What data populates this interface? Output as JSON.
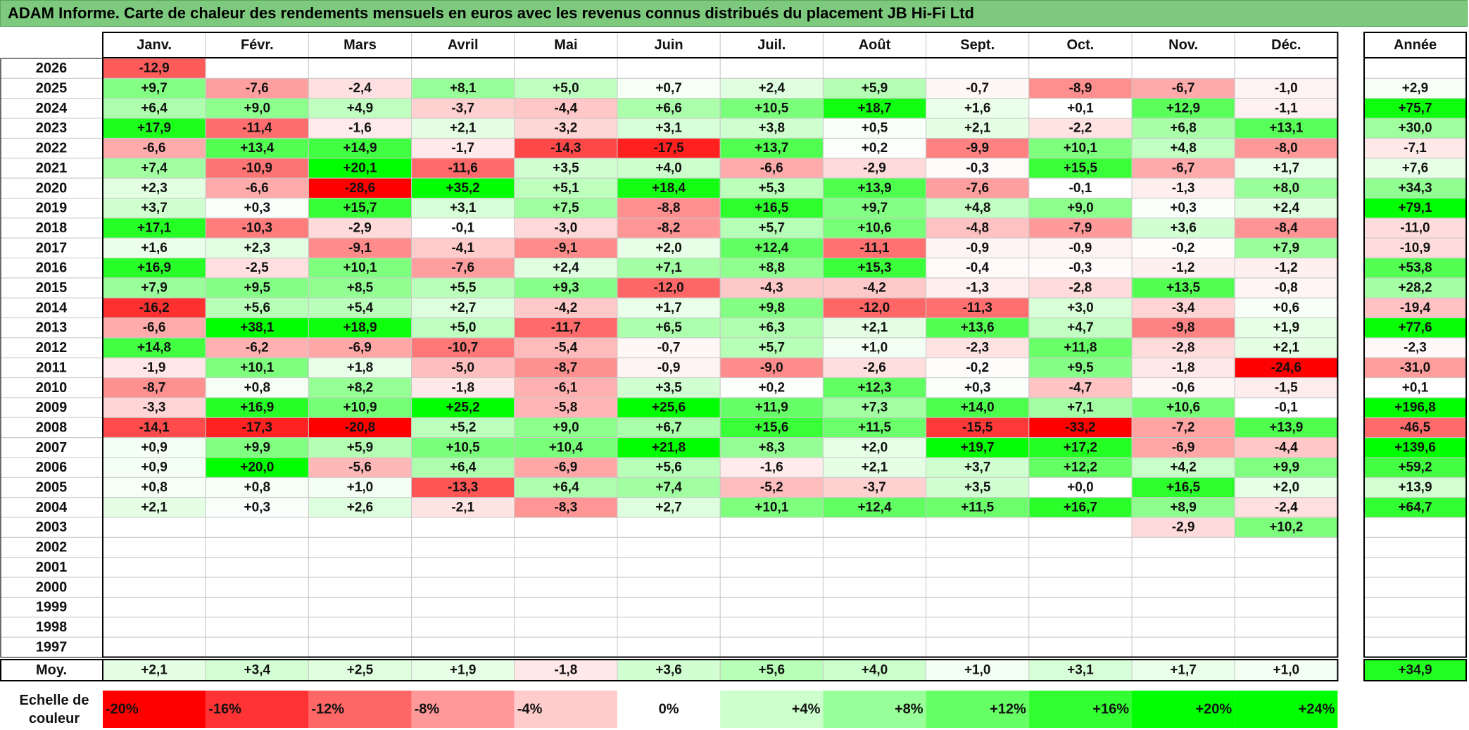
{
  "title": "ADAM Informe. Carte de chaleur des rendements mensuels en euros avec les revenus connus distribués du placement JB Hi-Fi Ltd",
  "colors": {
    "title_bg": "#7dc97d",
    "grid": "#c8c8c8",
    "strong_border": "#000000",
    "scale": {
      "-20": "#ff0000",
      "-16": "#ff3333",
      "-12": "#ff6666",
      "-8": "#ff9999",
      "-4": "#ffcccc",
      "0": "#ffffff",
      "4": "#ccffcc",
      "8": "#99ff99",
      "12": "#66ff66",
      "16": "#33ff33",
      "20": "#00ff00",
      "24": "#00ff00"
    }
  },
  "chart_data": {
    "type": "heatmap",
    "title": "ADAM Informe. Carte de chaleur des rendements mensuels en euros avec les revenus connus distribués du placement JB Hi-Fi Ltd",
    "columns": [
      "Janv.",
      "Févr.",
      "Mars",
      "Avril",
      "Mai",
      "Juin",
      "Juil.",
      "Août",
      "Sept.",
      "Oct.",
      "Nov.",
      "Déc."
    ],
    "year_column_label": "Année",
    "rows": [
      {
        "year": "2026",
        "values": [
          "-12,9",
          "",
          "",
          "",
          "",
          "",
          "",
          "",
          "",
          "",
          "",
          ""
        ],
        "annual": ""
      },
      {
        "year": "2025",
        "values": [
          "+9,7",
          "-7,6",
          "-2,4",
          "+8,1",
          "+5,0",
          "+0,7",
          "+2,4",
          "+5,9",
          "-0,7",
          "-8,9",
          "-6,7",
          "-1,0"
        ],
        "annual": "+2,9"
      },
      {
        "year": "2024",
        "values": [
          "+6,4",
          "+9,0",
          "+4,9",
          "-3,7",
          "-4,4",
          "+6,6",
          "+10,5",
          "+18,7",
          "+1,6",
          "+0,1",
          "+12,9",
          "-1,1"
        ],
        "annual": "+75,7"
      },
      {
        "year": "2023",
        "values": [
          "+17,9",
          "-11,4",
          "-1,6",
          "+2,1",
          "-3,2",
          "+3,1",
          "+3,8",
          "+0,5",
          "+2,1",
          "-2,2",
          "+6,8",
          "+13,1"
        ],
        "annual": "+30,0"
      },
      {
        "year": "2022",
        "values": [
          "-6,6",
          "+13,4",
          "+14,9",
          "-1,7",
          "-14,3",
          "-17,5",
          "+13,7",
          "+0,2",
          "-9,9",
          "+10,1",
          "+4,8",
          "-8,0"
        ],
        "annual": "-7,1"
      },
      {
        "year": "2021",
        "values": [
          "+7,4",
          "-10,9",
          "+20,1",
          "-11,6",
          "+3,5",
          "+4,0",
          "-6,6",
          "-2,9",
          "-0,3",
          "+15,5",
          "-6,7",
          "+1,7"
        ],
        "annual": "+7,6"
      },
      {
        "year": "2020",
        "values": [
          "+2,3",
          "-6,6",
          "-28,6",
          "+35,2",
          "+5,1",
          "+18,4",
          "+5,3",
          "+13,9",
          "-7,6",
          "-0,1",
          "-1,3",
          "+8,0"
        ],
        "annual": "+34,3"
      },
      {
        "year": "2019",
        "values": [
          "+3,7",
          "+0,3",
          "+15,7",
          "+3,1",
          "+7,5",
          "-8,8",
          "+16,5",
          "+9,7",
          "+4,8",
          "+9,0",
          "+0,3",
          "+2,4"
        ],
        "annual": "+79,1"
      },
      {
        "year": "2018",
        "values": [
          "+17,1",
          "-10,3",
          "-2,9",
          "-0,1",
          "-3,0",
          "-8,2",
          "+5,7",
          "+10,6",
          "-4,8",
          "-7,9",
          "+3,6",
          "-8,4"
        ],
        "annual": "-11,0"
      },
      {
        "year": "2017",
        "values": [
          "+1,6",
          "+2,3",
          "-9,1",
          "-4,1",
          "-9,1",
          "+2,0",
          "+12,4",
          "-11,1",
          "-0,9",
          "-0,9",
          "-0,2",
          "+7,9"
        ],
        "annual": "-10,9"
      },
      {
        "year": "2016",
        "values": [
          "+16,9",
          "-2,5",
          "+10,1",
          "-7,6",
          "+2,4",
          "+7,1",
          "+8,8",
          "+15,3",
          "-0,4",
          "-0,3",
          "-1,2",
          "-1,2"
        ],
        "annual": "+53,8"
      },
      {
        "year": "2015",
        "values": [
          "+7,9",
          "+9,5",
          "+8,5",
          "+5,5",
          "+9,3",
          "-12,0",
          "-4,3",
          "-4,2",
          "-1,3",
          "-2,8",
          "+13,5",
          "-0,8"
        ],
        "annual": "+28,2"
      },
      {
        "year": "2014",
        "values": [
          "-16,2",
          "+5,6",
          "+5,4",
          "+2,7",
          "-4,2",
          "+1,7",
          "+9,8",
          "-12,0",
          "-11,3",
          "+3,0",
          "-3,4",
          "+0,6"
        ],
        "annual": "-19,4"
      },
      {
        "year": "2013",
        "values": [
          "-6,6",
          "+38,1",
          "+18,9",
          "+5,0",
          "-11,7",
          "+6,5",
          "+6,3",
          "+2,1",
          "+13,6",
          "+4,7",
          "-9,8",
          "+1,9"
        ],
        "annual": "+77,6"
      },
      {
        "year": "2012",
        "values": [
          "+14,8",
          "-6,2",
          "-6,9",
          "-10,7",
          "-5,4",
          "-0,7",
          "+5,7",
          "+1,0",
          "-2,3",
          "+11,8",
          "-2,8",
          "+2,1"
        ],
        "annual": "-2,3"
      },
      {
        "year": "2011",
        "values": [
          "-1,9",
          "+10,1",
          "+1,8",
          "-5,0",
          "-8,7",
          "-0,9",
          "-9,0",
          "-2,6",
          "-0,2",
          "+9,5",
          "-1,8",
          "-24,6"
        ],
        "annual": "-31,0"
      },
      {
        "year": "2010",
        "values": [
          "-8,7",
          "+0,8",
          "+8,2",
          "-1,8",
          "-6,1",
          "+3,5",
          "+0,2",
          "+12,3",
          "+0,3",
          "-4,7",
          "-0,6",
          "-1,5"
        ],
        "annual": "+0,1"
      },
      {
        "year": "2009",
        "values": [
          "-3,3",
          "+16,9",
          "+10,9",
          "+25,2",
          "-5,8",
          "+25,6",
          "+11,9",
          "+7,3",
          "+14,0",
          "+7,1",
          "+10,6",
          "-0,1"
        ],
        "annual": "+196,8"
      },
      {
        "year": "2008",
        "values": [
          "-14,1",
          "-17,3",
          "-20,8",
          "+5,2",
          "+9,0",
          "+6,7",
          "+15,6",
          "+11,5",
          "-15,5",
          "-33,2",
          "-7,2",
          "+13,9"
        ],
        "annual": "-46,5"
      },
      {
        "year": "2007",
        "values": [
          "+0,9",
          "+9,9",
          "+5,9",
          "+10,5",
          "+10,4",
          "+21,8",
          "+8,3",
          "+2,0",
          "+19,7",
          "+17,2",
          "-6,9",
          "-4,4"
        ],
        "annual": "+139,6"
      },
      {
        "year": "2006",
        "values": [
          "+0,9",
          "+20,0",
          "-5,6",
          "+6,4",
          "-6,9",
          "+5,6",
          "-1,6",
          "+2,1",
          "+3,7",
          "+12,2",
          "+4,2",
          "+9,9"
        ],
        "annual": "+59,2"
      },
      {
        "year": "2005",
        "values": [
          "+0,8",
          "+0,8",
          "+1,0",
          "-13,3",
          "+6,4",
          "+7,4",
          "-5,2",
          "-3,7",
          "+3,5",
          "+0,0",
          "+16,5",
          "+2,0"
        ],
        "annual": "+13,9"
      },
      {
        "year": "2004",
        "values": [
          "+2,1",
          "+0,3",
          "+2,6",
          "-2,1",
          "-8,3",
          "+2,7",
          "+10,1",
          "+12,4",
          "+11,5",
          "+16,7",
          "+8,9",
          "-2,4"
        ],
        "annual": "+64,7"
      },
      {
        "year": "2003",
        "values": [
          "",
          "",
          "",
          "",
          "",
          "",
          "",
          "",
          "",
          "",
          "-2,9",
          "+10,2"
        ],
        "annual": ""
      },
      {
        "year": "2002",
        "values": [
          "",
          "",
          "",
          "",
          "",
          "",
          "",
          "",
          "",
          "",
          "",
          ""
        ],
        "annual": ""
      },
      {
        "year": "2001",
        "values": [
          "",
          "",
          "",
          "",
          "",
          "",
          "",
          "",
          "",
          "",
          "",
          ""
        ],
        "annual": ""
      },
      {
        "year": "2000",
        "values": [
          "",
          "",
          "",
          "",
          "",
          "",
          "",
          "",
          "",
          "",
          "",
          ""
        ],
        "annual": ""
      },
      {
        "year": "1999",
        "values": [
          "",
          "",
          "",
          "",
          "",
          "",
          "",
          "",
          "",
          "",
          "",
          ""
        ],
        "annual": ""
      },
      {
        "year": "1998",
        "values": [
          "",
          "",
          "",
          "",
          "",
          "",
          "",
          "",
          "",
          "",
          "",
          ""
        ],
        "annual": ""
      },
      {
        "year": "1997",
        "values": [
          "",
          "",
          "",
          "",
          "",
          "",
          "",
          "",
          "",
          "",
          "",
          ""
        ],
        "annual": ""
      }
    ],
    "average_row": {
      "label": "Moy.",
      "values": [
        "+2,1",
        "+3,4",
        "+2,5",
        "+1,9",
        "-1,8",
        "+3,6",
        "+5,6",
        "+4,0",
        "+1,0",
        "+3,1",
        "+1,7",
        "+1,0"
      ],
      "annual": "+34,9"
    },
    "color_scale": {
      "label": "Echelle de couleur",
      "steps": [
        "-20%",
        "-16%",
        "-12%",
        "-8%",
        "-4%",
        "0%",
        "+4%",
        "+8%",
        "+12%",
        "+16%",
        "+20%",
        "+24%"
      ]
    }
  }
}
